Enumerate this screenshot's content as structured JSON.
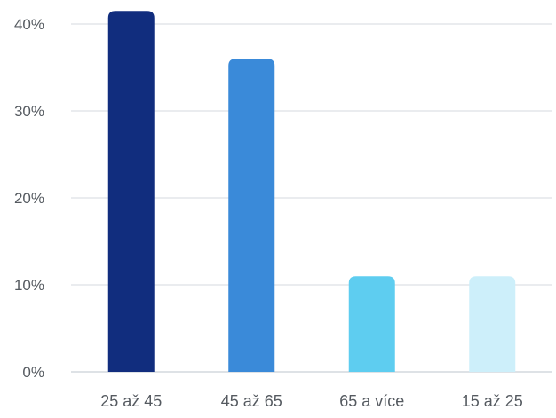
{
  "chart_data": {
    "type": "bar",
    "title": "",
    "xlabel": "",
    "ylabel": "",
    "categories": [
      "25 až 45",
      "45 až 65",
      "65 a více",
      "15 až 25"
    ],
    "values": [
      41.5,
      36,
      11,
      11
    ],
    "colors": [
      "#112d7e",
      "#3a8ad9",
      "#5ecdf0",
      "#cdeffa"
    ],
    "ylim": [
      0,
      40
    ],
    "yticks": [
      0,
      10,
      20,
      30,
      40
    ],
    "ytick_labels": [
      "0%",
      "10%",
      "20%",
      "30%",
      "40%"
    ],
    "grid": true,
    "legend": "none"
  }
}
